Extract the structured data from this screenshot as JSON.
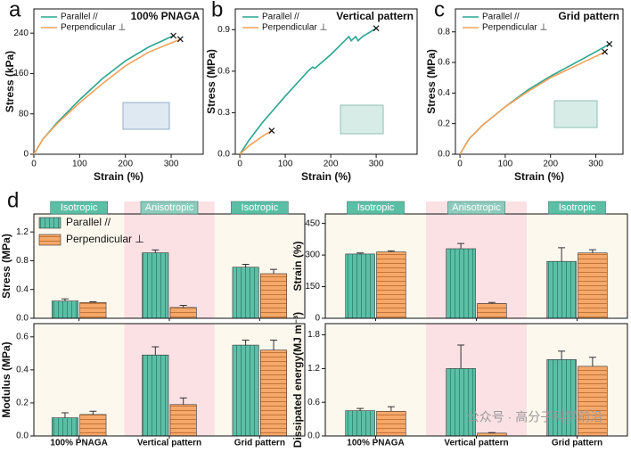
{
  "chart_data": [
    {
      "type": "line",
      "label": "a",
      "title": "100% PNAGA",
      "x_label": "Strain (%)",
      "y_label": "Stress (kPa)",
      "xlim": [
        0,
        370
      ],
      "xticks": [
        0,
        100,
        200,
        300
      ],
      "ylim": [
        0,
        288
      ],
      "yticks": [
        0,
        80,
        160,
        240
      ],
      "legend": "upper left",
      "series": [
        {
          "name": "Parallel //",
          "color": "#2aa590",
          "x": [
            0,
            20,
            50,
            100,
            150,
            200,
            250,
            305
          ],
          "values": [
            0,
            30,
            62,
            108,
            150,
            185,
            212,
            235
          ]
        },
        {
          "name": "Perpendicular ⊥",
          "color": "#f5a25a",
          "x": [
            0,
            20,
            50,
            100,
            150,
            200,
            250,
            320
          ],
          "values": [
            0,
            30,
            60,
            102,
            140,
            175,
            202,
            228
          ]
        }
      ]
    },
    {
      "type": "line",
      "label": "b",
      "title": "Vertical pattern",
      "x_label": "Strain (%)",
      "y_label": "Stress (MPa)",
      "xlim": [
        -10,
        390
      ],
      "xticks": [
        0,
        100,
        200,
        300
      ],
      "ylim": [
        0,
        1.05
      ],
      "yticks": [
        {
          "value": 0,
          "label": "0.0"
        },
        0.3,
        0.6,
        0.9
      ],
      "legend": "upper left",
      "series": [
        {
          "name": "Parallel //",
          "color": "#2aa590",
          "x": [
            0,
            20,
            50,
            100,
            150,
            160,
            165,
            200,
            240,
            245,
            255,
            260,
            270,
            300
          ],
          "values": [
            0,
            0.1,
            0.23,
            0.42,
            0.6,
            0.63,
            0.62,
            0.72,
            0.85,
            0.82,
            0.85,
            0.82,
            0.85,
            0.91
          ]
        },
        {
          "name": "Perpendicular ⊥",
          "color": "#f5a25a",
          "x": [
            0,
            20,
            50,
            70
          ],
          "values": [
            0,
            0.06,
            0.13,
            0.17
          ]
        }
      ]
    },
    {
      "type": "line",
      "label": "c",
      "title": "Grid pattern",
      "x_label": "Strain (%)",
      "y_label": "Stress (MPa)",
      "xlim": [
        -10,
        360
      ],
      "xticks": [
        0,
        100,
        200,
        300
      ],
      "ylim": [
        0,
        0.95
      ],
      "yticks": [
        {
          "value": 0,
          "label": "0.0"
        },
        0.2,
        0.4,
        0.6,
        0.8
      ],
      "legend": "upper left",
      "series": [
        {
          "name": "Parallel //",
          "color": "#2aa590",
          "x": [
            0,
            20,
            50,
            100,
            150,
            200,
            250,
            300,
            330
          ],
          "values": [
            0,
            0.1,
            0.19,
            0.31,
            0.42,
            0.51,
            0.59,
            0.67,
            0.72
          ]
        },
        {
          "name": "Perpendicular ⊥",
          "color": "#f5a25a",
          "x": [
            0,
            20,
            50,
            100,
            150,
            200,
            250,
            300,
            320
          ],
          "values": [
            0,
            0.1,
            0.19,
            0.31,
            0.41,
            0.5,
            0.57,
            0.64,
            0.67
          ]
        }
      ]
    },
    {
      "type": "bar",
      "label": "d",
      "y_label": "Stress (MPa)",
      "categories": [
        null,
        null,
        null
      ],
      "annotations": [
        "Isotropic",
        "Anisotropic",
        "Isotropic"
      ],
      "ylim": [
        0,
        1.45
      ],
      "yticks": [
        {
          "value": 0,
          "label": "0.0"
        },
        0.4,
        0.8,
        1.2
      ],
      "legend": "upper left",
      "series": [
        {
          "name": "Parallel //",
          "color": "#5bbfa6",
          "values": [
            0.24,
            0.91,
            0.71
          ],
          "errors": [
            0.03,
            0.04,
            0.04
          ]
        },
        {
          "name": "Perpendicular ⊥",
          "color": "#f6a86b",
          "values": [
            0.22,
            0.15,
            0.62
          ],
          "errors": [
            0.01,
            0.03,
            0.06
          ]
        }
      ]
    },
    {
      "type": "bar",
      "y_label": "Modulus (MPa)",
      "categories": [
        "100% PNAGA",
        "Vertical pattern",
        "Grid pattern"
      ],
      "ylim": [
        0,
        0.68
      ],
      "yticks": [
        {
          "value": 0,
          "label": "0.0"
        },
        0.2,
        0.4,
        0.6
      ],
      "series": [
        {
          "color": "#5bbfa6",
          "values": [
            0.11,
            0.49,
            0.55
          ],
          "errors": [
            0.03,
            0.05,
            0.03
          ]
        },
        {
          "color": "#f6a86b",
          "values": [
            0.13,
            0.19,
            0.52
          ],
          "errors": [
            0.02,
            0.04,
            0.06
          ]
        }
      ]
    },
    {
      "type": "bar",
      "y_label": "Strain (%)",
      "categories": [
        null,
        null,
        null
      ],
      "annotations": [
        "Isotropic",
        "Anisotropic",
        "Isotropic"
      ],
      "ylim": [
        0,
        495
      ],
      "yticks": [
        0,
        150,
        300,
        450
      ],
      "series": [
        {
          "color": "#5bbfa6",
          "values": [
            305,
            330,
            270
          ],
          "errors": [
            5,
            25,
            65
          ]
        },
        {
          "color": "#f6a86b",
          "values": [
            315,
            70,
            310
          ],
          "errors": [
            5,
            5,
            15
          ]
        }
      ]
    },
    {
      "type": "bar",
      "y_label": "Dissipated energy(MJ m⁻³)",
      "categories": [
        "100% PNAGA",
        "Vertical pattern",
        "Grid pattern"
      ],
      "ylim": [
        0,
        2.0
      ],
      "yticks": [
        {
          "value": 0,
          "label": "0.0"
        },
        0.6,
        1.2,
        1.8
      ],
      "series": [
        {
          "color": "#5bbfa6",
          "values": [
            0.45,
            1.2,
            1.36
          ],
          "errors": [
            0.04,
            0.42,
            0.15
          ]
        },
        {
          "color": "#f6a86b",
          "values": [
            0.44,
            0.05,
            1.24
          ],
          "errors": [
            0.08,
            0.01,
            0.16
          ]
        }
      ]
    }
  ],
  "watermark": "公众号 · 高分子科学前沿"
}
